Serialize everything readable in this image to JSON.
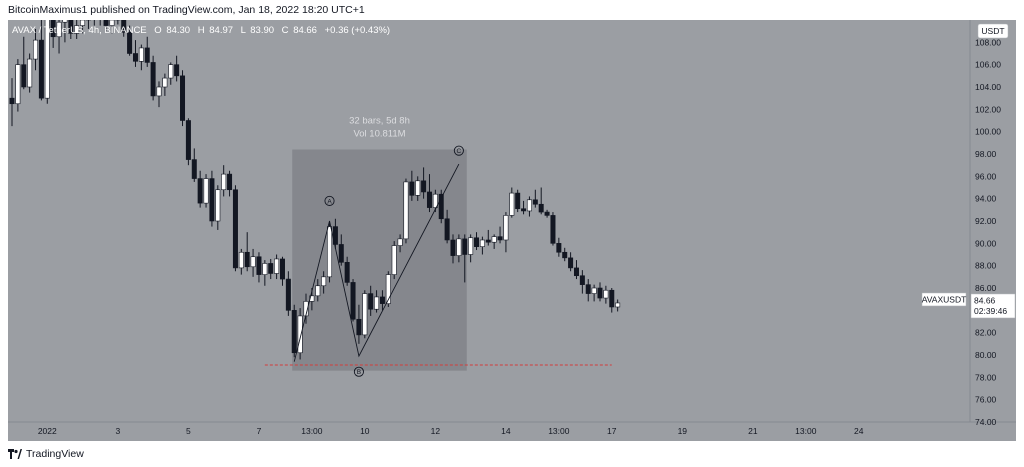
{
  "header": {
    "published_text": "BitcoinMaximus1 published on TradingView.com, Jan 18, 2022 18:20 UTC+1"
  },
  "legend": {
    "symbol": "AVAX / TetherUS, 4h, BINANCE",
    "o_label": "O",
    "o_value": "84.30",
    "h_label": "H",
    "h_value": "84.97",
    "l_label": "L",
    "l_value": "83.90",
    "c_label": "C",
    "c_value": "84.66",
    "change": "+0.36 (+0.43%)"
  },
  "currency_label": "USDT",
  "symbol_tag": "AVAXUSDT",
  "last_price": "84.66",
  "countdown": "02:39:46",
  "measure": {
    "bars": "32 bars, 5d 8h",
    "vol": "Vol 10.811M"
  },
  "waves": {
    "a": "A",
    "b": "B",
    "c": "C"
  },
  "footer": {
    "brand": "TradingView"
  },
  "colors": {
    "background": "#9b9ea3",
    "candle_up": "#ffffff",
    "candle_down": "#131722",
    "measure_box": "#7e7f86",
    "support_line": "#d23c3c"
  },
  "chart_data": {
    "type": "candlestick",
    "ylim": [
      74,
      110
    ],
    "y_ticks": [
      "74.00",
      "76.00",
      "78.00",
      "80.00",
      "82.00",
      "84.00",
      "86.00",
      "88.00",
      "90.00",
      "92.00",
      "94.00",
      "96.00",
      "98.00",
      "100.00",
      "102.00",
      "104.00",
      "106.00",
      "108.00"
    ],
    "x_ticks": [
      {
        "label": "2022",
        "bar": 6
      },
      {
        "label": "3",
        "bar": 18
      },
      {
        "label": "5",
        "bar": 30
      },
      {
        "label": "7",
        "bar": 42
      },
      {
        "label": "13:00",
        "bar": 51
      },
      {
        "label": "10",
        "bar": 60
      },
      {
        "label": "12",
        "bar": 72
      },
      {
        "label": "14",
        "bar": 84
      },
      {
        "label": "13:00",
        "bar": 93
      },
      {
        "label": "17",
        "bar": 102
      },
      {
        "label": "19",
        "bar": 114
      },
      {
        "label": "21",
        "bar": 126
      },
      {
        "label": "13:00",
        "bar": 135
      },
      {
        "label": "24",
        "bar": 144
      }
    ],
    "ohlc": [
      [
        103.0,
        104.8,
        100.5,
        102.5
      ],
      [
        102.5,
        106.5,
        101.8,
        106.0
      ],
      [
        106.0,
        108.5,
        103.8,
        104.0
      ],
      [
        104.0,
        107.0,
        103.5,
        106.5
      ],
      [
        106.5,
        109.2,
        105.5,
        108.2
      ],
      [
        108.2,
        110.5,
        102.8,
        103.0
      ],
      [
        103.0,
        111.0,
        102.5,
        110.2
      ],
      [
        110.2,
        111.2,
        107.5,
        108.5
      ],
      [
        108.5,
        110.5,
        107.0,
        109.8
      ],
      [
        109.8,
        111.5,
        108.0,
        110.5
      ],
      [
        110.5,
        111.0,
        108.3,
        108.8
      ],
      [
        108.8,
        110.5,
        108.3,
        109.5
      ],
      [
        109.5,
        111.0,
        108.8,
        110.0
      ],
      [
        110.0,
        110.8,
        109.2,
        110.3
      ],
      [
        110.3,
        111.5,
        109.5,
        110.8
      ],
      [
        110.8,
        111.2,
        109.5,
        110.2
      ],
      [
        110.2,
        111.0,
        109.0,
        109.5
      ],
      [
        109.5,
        110.5,
        108.8,
        110.0
      ],
      [
        110.0,
        110.8,
        109.6,
        110.2
      ],
      [
        110.2,
        110.5,
        108.5,
        108.9
      ],
      [
        108.9,
        109.5,
        106.8,
        107.0
      ],
      [
        107.0,
        108.2,
        105.8,
        106.3
      ],
      [
        106.3,
        107.8,
        105.5,
        107.5
      ],
      [
        107.5,
        108.5,
        105.8,
        106.2
      ],
      [
        106.2,
        106.8,
        102.8,
        103.2
      ],
      [
        103.2,
        104.5,
        102.2,
        104.0
      ],
      [
        104.0,
        105.2,
        103.2,
        104.8
      ],
      [
        104.8,
        106.2,
        104.2,
        106.0
      ],
      [
        106.0,
        106.8,
        104.5,
        105.0
      ],
      [
        105.0,
        105.5,
        100.5,
        101.0
      ],
      [
        101.0,
        101.2,
        97.0,
        97.5
      ],
      [
        97.5,
        98.5,
        95.5,
        95.8
      ],
      [
        95.8,
        96.5,
        93.2,
        93.6
      ],
      [
        93.6,
        96.2,
        93.2,
        95.8
      ],
      [
        95.8,
        96.5,
        91.5,
        92.0
      ],
      [
        92.0,
        95.2,
        91.2,
        94.8
      ],
      [
        94.8,
        97.0,
        94.2,
        96.2
      ],
      [
        96.2,
        96.5,
        94.2,
        94.8
      ],
      [
        94.8,
        95.2,
        87.5,
        87.8
      ],
      [
        87.8,
        89.5,
        87.2,
        89.2
      ],
      [
        89.2,
        91.0,
        87.5,
        87.9
      ],
      [
        87.9,
        89.5,
        87.0,
        88.8
      ],
      [
        88.8,
        89.2,
        86.5,
        87.2
      ],
      [
        87.2,
        88.5,
        86.2,
        88.2
      ],
      [
        88.2,
        88.6,
        86.8,
        87.3
      ],
      [
        87.3,
        89.0,
        86.8,
        88.6
      ],
      [
        88.6,
        88.8,
        86.2,
        86.8
      ],
      [
        86.8,
        87.5,
        83.5,
        84.0
      ],
      [
        84.0,
        84.5,
        79.8,
        80.2
      ],
      [
        80.2,
        84.2,
        79.6,
        83.5
      ],
      [
        83.5,
        85.5,
        82.8,
        84.8
      ],
      [
        84.8,
        86.0,
        84.0,
        85.3
      ],
      [
        85.3,
        86.8,
        84.8,
        86.2
      ],
      [
        86.2,
        87.5,
        85.5,
        87.0
      ],
      [
        87.0,
        91.8,
        86.5,
        91.5
      ],
      [
        91.5,
        92.2,
        89.5,
        89.9
      ],
      [
        89.9,
        90.8,
        88.0,
        88.3
      ],
      [
        88.3,
        88.8,
        86.2,
        86.5
      ],
      [
        86.5,
        86.8,
        83.0,
        83.2
      ],
      [
        83.2,
        84.5,
        81.0,
        81.8
      ],
      [
        81.8,
        85.8,
        81.5,
        85.5
      ],
      [
        85.5,
        86.2,
        83.5,
        84.1
      ],
      [
        84.1,
        85.8,
        83.8,
        85.2
      ],
      [
        85.2,
        85.8,
        84.0,
        84.6
      ],
      [
        84.6,
        87.5,
        84.3,
        87.2
      ],
      [
        87.2,
        90.2,
        86.8,
        89.8
      ],
      [
        89.8,
        90.8,
        89.2,
        90.4
      ],
      [
        90.4,
        95.8,
        90.0,
        95.5
      ],
      [
        95.5,
        96.5,
        93.8,
        94.3
      ],
      [
        94.3,
        96.0,
        93.8,
        95.6
      ],
      [
        95.6,
        96.8,
        94.0,
        94.6
      ],
      [
        94.6,
        96.2,
        92.8,
        93.2
      ],
      [
        93.2,
        94.8,
        92.8,
        94.4
      ],
      [
        94.4,
        94.8,
        91.8,
        92.2
      ],
      [
        92.2,
        93.0,
        90.0,
        90.3
      ],
      [
        90.3,
        90.8,
        88.2,
        88.9
      ],
      [
        88.9,
        90.8,
        88.3,
        90.4
      ],
      [
        90.4,
        90.8,
        86.5,
        89.0
      ],
      [
        89.0,
        90.8,
        88.3,
        90.5
      ],
      [
        90.5,
        91.0,
        89.4,
        89.7
      ],
      [
        89.7,
        90.6,
        89.0,
        90.3
      ],
      [
        90.3,
        91.2,
        89.8,
        90.1
      ],
      [
        90.1,
        90.8,
        89.5,
        90.6
      ],
      [
        90.6,
        91.5,
        90.0,
        90.3
      ],
      [
        90.3,
        92.8,
        89.2,
        92.5
      ],
      [
        92.5,
        95.0,
        92.3,
        94.5
      ],
      [
        94.5,
        94.8,
        92.8,
        93.1
      ],
      [
        93.1,
        93.8,
        92.6,
        92.9
      ],
      [
        92.9,
        94.2,
        92.4,
        93.9
      ],
      [
        93.9,
        94.8,
        93.2,
        93.5
      ],
      [
        93.5,
        95.0,
        92.6,
        92.8
      ],
      [
        92.8,
        93.0,
        92.3,
        92.5
      ],
      [
        92.5,
        92.8,
        89.8,
        90.0
      ],
      [
        90.0,
        90.5,
        88.8,
        89.2
      ],
      [
        89.2,
        89.6,
        88.4,
        88.7
      ],
      [
        88.7,
        89.2,
        87.5,
        87.8
      ],
      [
        87.8,
        88.5,
        86.8,
        87.1
      ],
      [
        87.1,
        87.6,
        85.5,
        86.3
      ],
      [
        86.3,
        86.8,
        84.8,
        85.5
      ],
      [
        85.5,
        86.3,
        84.8,
        86.0
      ],
      [
        86.0,
        86.5,
        84.8,
        85.1
      ],
      [
        85.1,
        86.2,
        84.6,
        85.8
      ],
      [
        85.8,
        86.0,
        83.8,
        84.3
      ],
      [
        84.3,
        84.97,
        83.9,
        84.66
      ]
    ],
    "measure_range": {
      "bar_start": 48,
      "bar_end": 77,
      "y_low": 78.6,
      "y_high": 98.4
    },
    "wave_path": [
      {
        "bar": 48,
        "y": 79.4
      },
      {
        "bar": 54,
        "y": 92.0
      },
      {
        "bar": 59,
        "y": 79.9
      },
      {
        "bar": 76,
        "y": 97.1
      }
    ],
    "wave_labels": [
      {
        "label": "A",
        "bar": 54,
        "y": 93.8
      },
      {
        "label": "B",
        "bar": 59,
        "y": 78.5
      },
      {
        "label": "C",
        "bar": 76,
        "y": 98.3
      }
    ],
    "support_level": {
      "y": 79.1,
      "bar_start": 43,
      "bar_end": 102
    },
    "last_price": 84.66
  }
}
